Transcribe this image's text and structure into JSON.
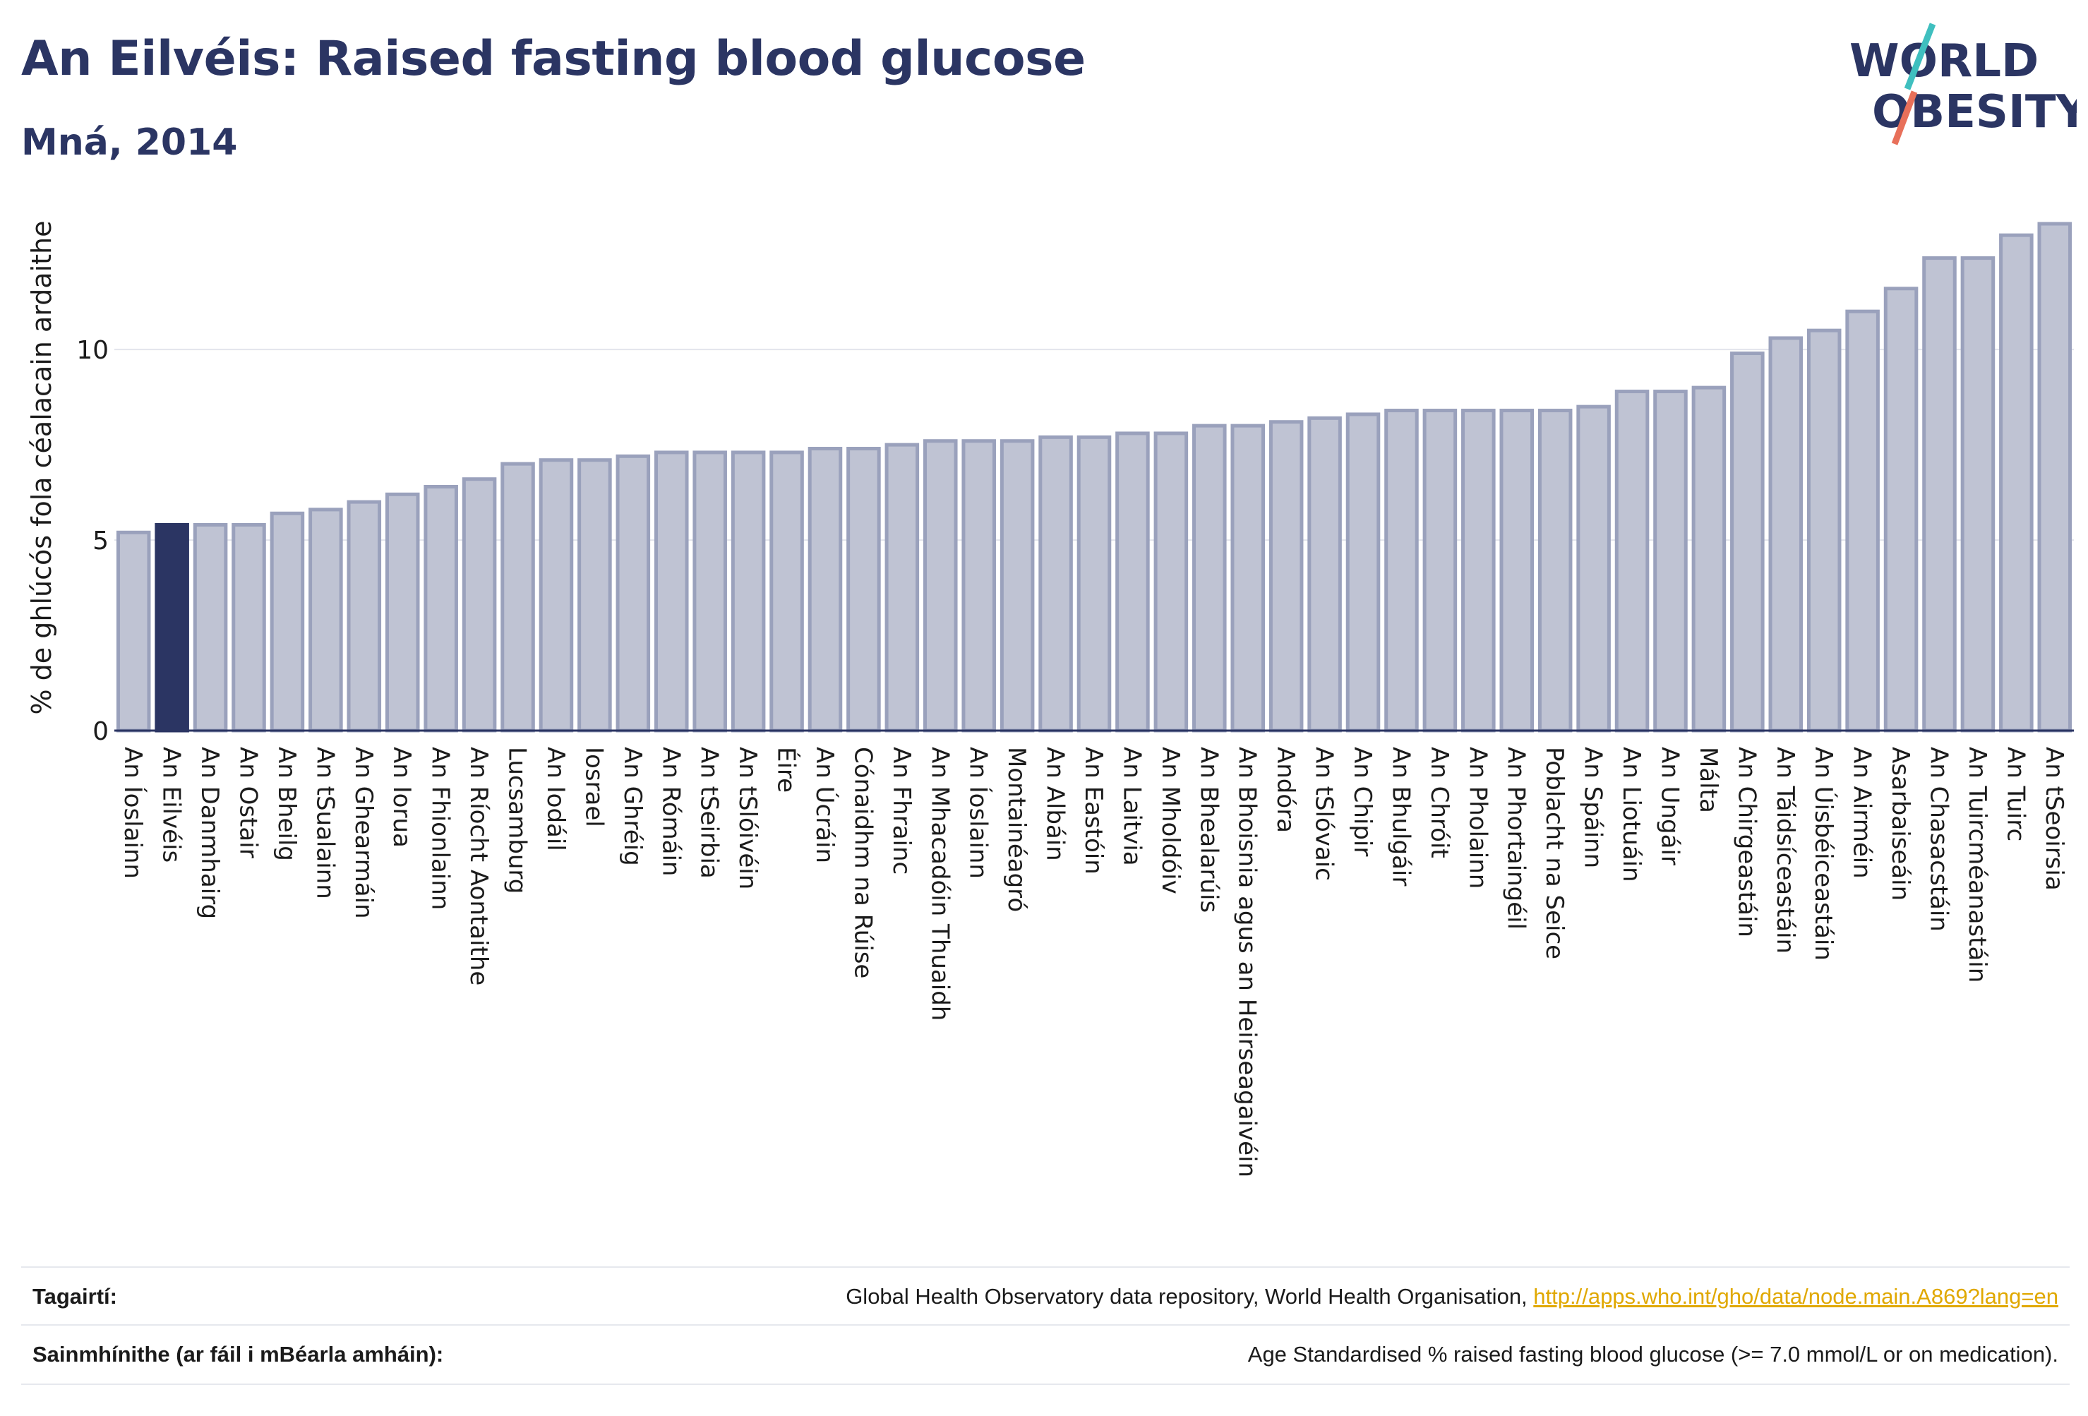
{
  "header": {
    "title": "An Eilvéis: Raised fasting blood glucose",
    "subtitle": "Mná, 2014"
  },
  "logo": {
    "line1": "WORLD",
    "line2": "OBESITY",
    "colors": {
      "text": "#2b3563",
      "slash_teal": "#3fbfbf",
      "slash_coral": "#e8705a"
    }
  },
  "colors": {
    "bar_fill": "#bfc3d3",
    "bar_stroke": "#9aa1bc",
    "highlight_fill": "#2b3563",
    "axis": "#2b3563",
    "grid": "#e3e5ec"
  },
  "chart_data": {
    "type": "bar",
    "ylabel": "% de ghlúcós fola céalacain ardaithe",
    "xlabel": "",
    "ylim": [
      0,
      13.8
    ],
    "yticks": [
      0,
      5,
      10
    ],
    "grid": true,
    "highlight": "An Eilvéis",
    "categories": [
      "An Íoslainn",
      "An Eilvéis",
      "An Danmhairg",
      "An Ostair",
      "An Bheilg",
      "An tSualainn",
      "An Ghearmáin",
      "An Iorua",
      "An Fhionlainn",
      "An Ríocht Aontaithe",
      "Lucsamburg",
      "An Iodáil",
      "Iosrael",
      "An Ghréig",
      "An Rómáin",
      "An tSeirbia",
      "An tSlóivéin",
      "Éire",
      "An Úcráin",
      "Cónaidhm na Rúise",
      "An Fhrainc",
      "An Mhacadóin Thuaidh",
      "An Íoslainn",
      "Montainéagró",
      "An Albáin",
      "An Eastóin",
      "An Laitvia",
      "An Mholdóiv",
      "An Bhealarúis",
      "An Bhoisnia agus an Heirseagaivéin",
      "Andóra",
      "An tSlóvaic",
      "An Chipir",
      "An Bhulgáir",
      "An Chróit",
      "An Pholainn",
      "An Phortaingéil",
      "Poblacht na Seice",
      "An Spáinn",
      "An Liotuáin",
      "An Ungáir",
      "Málta",
      "An Chirgeastáin",
      "An Táidsíceastáin",
      "An Úisbéiceastáin",
      "An Airméin",
      "Asarbaiseáin",
      "An Chasacstáin",
      "An Tuircméanastáin",
      "An Tuirc",
      "An tSeoirsia"
    ],
    "values": [
      5.2,
      5.4,
      5.4,
      5.4,
      5.7,
      5.8,
      6.0,
      6.2,
      6.4,
      6.6,
      7.0,
      7.1,
      7.1,
      7.2,
      7.3,
      7.3,
      7.3,
      7.3,
      7.4,
      7.4,
      7.5,
      7.6,
      7.6,
      7.6,
      7.7,
      7.7,
      7.8,
      7.8,
      8.0,
      8.0,
      8.1,
      8.2,
      8.3,
      8.4,
      8.4,
      8.4,
      8.4,
      8.4,
      8.5,
      8.9,
      8.9,
      9.0,
      9.9,
      10.3,
      10.5,
      11.0,
      11.6,
      12.4,
      12.4,
      13.0,
      13.3
    ]
  },
  "footer": {
    "references_label": "Tagairtí:",
    "references_text": "Global Health Observatory data repository, World Health Organisation, ",
    "references_link": "http://apps.who.int/gho/data/node.main.A869?lang=en",
    "definitions_label": "Sainmhínithe (ar fáil i mBéarla amháin):",
    "definitions_text": "Age Standardised % raised fasting blood glucose (>= 7.0 mmol/L or on medication)."
  }
}
